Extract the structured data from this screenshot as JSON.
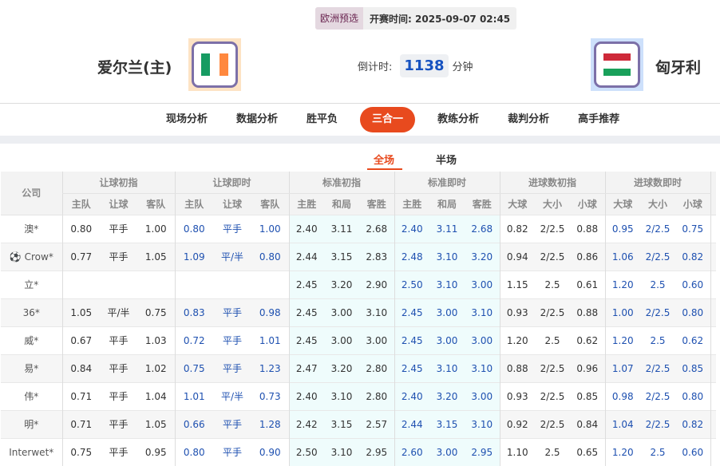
{
  "match": {
    "league": "欧洲预选",
    "kickoff_label": "开赛时间:",
    "kickoff": "2025-09-07 02:45",
    "home": "爱尔兰(主)",
    "away": "匈牙利",
    "countdown_label": "倒计时:",
    "countdown": "1138",
    "countdown_unit": "分钟",
    "home_flag": [
      "#169b62",
      "#ffffff",
      "#ff883e"
    ],
    "away_flag": [
      "#ce2939",
      "#ffffff",
      "#19a05a"
    ]
  },
  "nav": [
    "现场分析",
    "数据分析",
    "胜平负",
    "三合一",
    "教练分析",
    "裁判分析",
    "高手推荐"
  ],
  "nav_active": 3,
  "subtabs": [
    "全场",
    "半场"
  ],
  "table": {
    "company_header": "公司",
    "groups": [
      "让球初指",
      "让球即时",
      "标准初指",
      "标准即时",
      "进球数初指",
      "进球数即时"
    ],
    "sub": [
      [
        "主队",
        "让球",
        "客队"
      ],
      [
        "主队",
        "让球",
        "客队"
      ],
      [
        "主胜",
        "和局",
        "客胜"
      ],
      [
        "主胜",
        "和局",
        "客胜"
      ],
      [
        "大球",
        "大小",
        "小球"
      ],
      [
        "大球",
        "大小",
        "小球"
      ]
    ],
    "rows": [
      {
        "company": "澳*",
        "v": [
          "0.80",
          "平手",
          "1.00",
          "0.80",
          "平手",
          "1.00",
          "2.40",
          "3.11",
          "2.68",
          "2.40",
          "3.11",
          "2.68",
          "0.82",
          "2/2.5",
          "0.88",
          "0.95",
          "2/2.5",
          "0.75"
        ]
      },
      {
        "company": "Crow*",
        "icon": "soccer-ball",
        "v": [
          "0.77",
          "平手",
          "1.05",
          "1.09",
          "平/半",
          "0.80",
          "2.44",
          "3.15",
          "2.83",
          "2.48",
          "3.10",
          "3.20",
          "0.94",
          "2/2.5",
          "0.86",
          "1.06",
          "2/2.5",
          "0.82"
        ]
      },
      {
        "company": "立*",
        "v": [
          "",
          "",
          "",
          "",
          "",
          "",
          "2.45",
          "3.20",
          "2.90",
          "2.50",
          "3.10",
          "3.00",
          "1.15",
          "2.5",
          "0.61",
          "1.20",
          "2.5",
          "0.60"
        ]
      },
      {
        "company": "36*",
        "v": [
          "1.05",
          "平/半",
          "0.75",
          "0.83",
          "平手",
          "0.98",
          "2.45",
          "3.00",
          "3.10",
          "2.45",
          "3.00",
          "3.10",
          "0.93",
          "2/2.5",
          "0.88",
          "1.00",
          "2/2.5",
          "0.80"
        ]
      },
      {
        "company": "威*",
        "v": [
          "0.67",
          "平手",
          "1.03",
          "0.72",
          "平手",
          "1.01",
          "2.45",
          "3.00",
          "3.00",
          "2.45",
          "3.00",
          "3.00",
          "1.20",
          "2.5",
          "0.62",
          "1.20",
          "2.5",
          "0.62"
        ]
      },
      {
        "company": "易*",
        "v": [
          "0.84",
          "平手",
          "1.02",
          "0.75",
          "平手",
          "1.23",
          "2.47",
          "3.20",
          "2.80",
          "2.45",
          "3.10",
          "3.10",
          "0.88",
          "2/2.5",
          "0.96",
          "1.07",
          "2/2.5",
          "0.85"
        ]
      },
      {
        "company": "伟*",
        "v": [
          "0.71",
          "平手",
          "1.04",
          "1.01",
          "平/半",
          "0.73",
          "2.40",
          "3.10",
          "2.80",
          "2.40",
          "3.20",
          "3.00",
          "0.93",
          "2/2.5",
          "0.85",
          "0.98",
          "2/2.5",
          "0.80"
        ]
      },
      {
        "company": "明*",
        "v": [
          "0.71",
          "平手",
          "1.05",
          "0.66",
          "平手",
          "1.28",
          "2.42",
          "3.15",
          "2.57",
          "2.44",
          "3.15",
          "3.10",
          "0.92",
          "2/2.5",
          "0.84",
          "1.04",
          "2/2.5",
          "0.82"
        ]
      },
      {
        "company": "Interwet*",
        "v": [
          "0.75",
          "平手",
          "0.95",
          "0.80",
          "平手",
          "0.90",
          "2.50",
          "3.10",
          "2.95",
          "2.60",
          "3.00",
          "2.95",
          "1.10",
          "2.5",
          "0.65",
          "1.20",
          "2.5",
          "0.60"
        ]
      }
    ]
  }
}
